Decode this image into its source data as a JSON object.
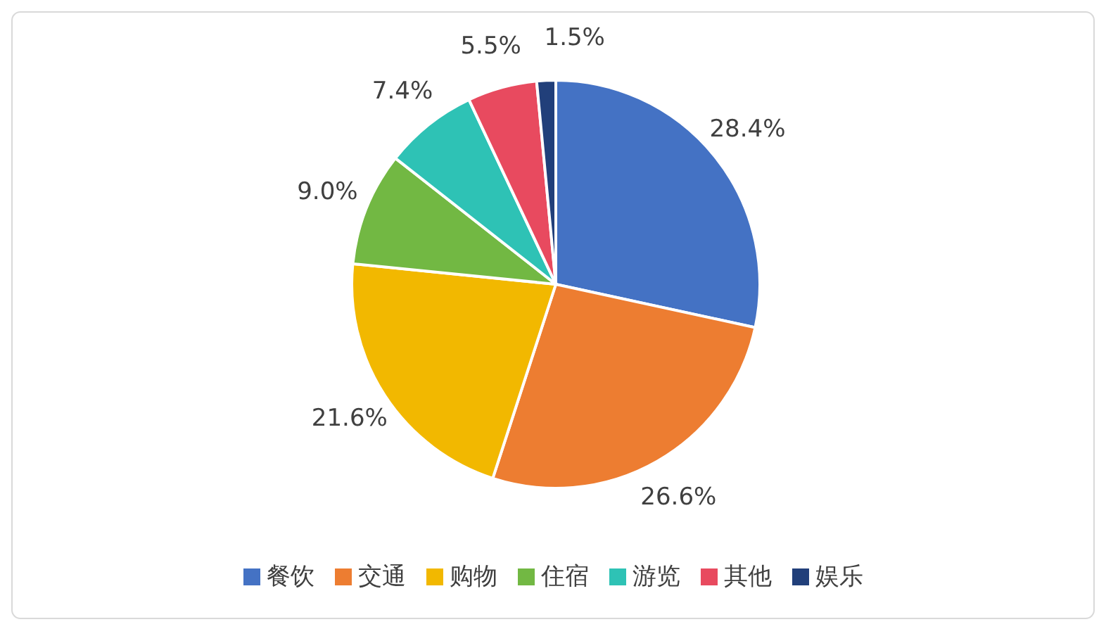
{
  "chart_data": {
    "type": "pie",
    "categories": [
      "餐饮",
      "交通",
      "购物",
      "住宿",
      "游览",
      "其他",
      "娱乐"
    ],
    "values": [
      28.4,
      26.6,
      21.6,
      9.0,
      7.4,
      5.5,
      1.5
    ],
    "value_labels": [
      "28.4%",
      "26.6%",
      "21.6%",
      "9.0%",
      "7.4%",
      "5.5%",
      "1.5%"
    ],
    "colors": [
      "#4472c4",
      "#ed7d31",
      "#f2b800",
      "#72b843",
      "#2ec2b5",
      "#e84a5f",
      "#213f7a"
    ],
    "legend": "bottom"
  }
}
